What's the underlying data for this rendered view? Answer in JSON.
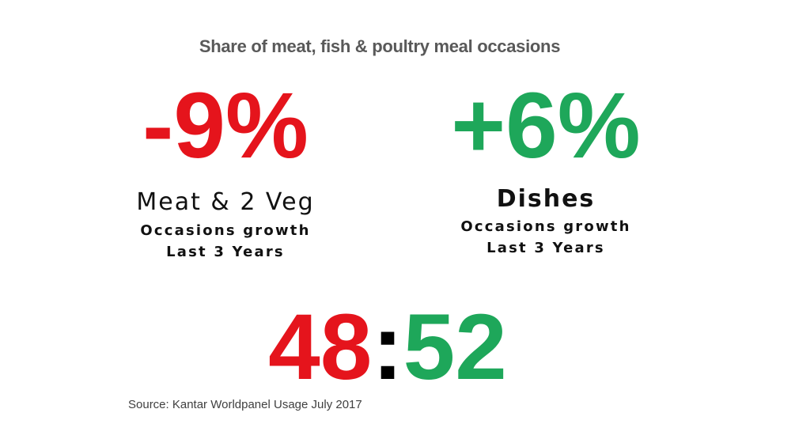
{
  "title": "Share of meat, fish & poultry meal occasions",
  "left": {
    "value": "-9%",
    "label": "Meat & 2 Veg",
    "line1": "Occasions growth",
    "line2": "Last 3 Years"
  },
  "right": {
    "value": "+6%",
    "label": "Dishes",
    "line1": "Occasions growth",
    "line2": "Last 3 Years"
  },
  "ratio": {
    "left": "48",
    "separator": ":",
    "right": "52"
  },
  "source": "Source: Kantar Worldpanel Usage July 2017"
}
